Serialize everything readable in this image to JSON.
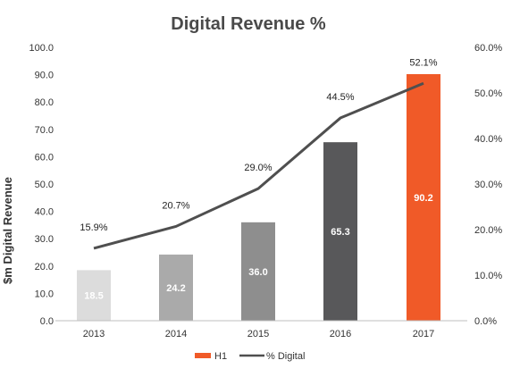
{
  "chart_data": {
    "type": "bar",
    "title": "Digital Revenue %",
    "ylabel": "$m Digital Revenue",
    "categories": [
      "2013",
      "2014",
      "2015",
      "2016",
      "2017"
    ],
    "ylim": [
      0,
      100
    ],
    "y2lim": [
      0,
      60
    ],
    "yticks": [
      "0.0",
      "10.0",
      "20.0",
      "30.0",
      "40.0",
      "50.0",
      "60.0",
      "70.0",
      "80.0",
      "90.0",
      "100.0"
    ],
    "y2ticks": [
      "0.0%",
      "10.0%",
      "20.0%",
      "30.0%",
      "40.0%",
      "50.0%",
      "60.0%"
    ],
    "bar_colors": [
      "#dcdcdc",
      "#aaaaaa",
      "#8e8e8e",
      "#58585a",
      "#f05a28"
    ],
    "line_color": "#4f4f4f",
    "legend_position": "bottom",
    "grid": false,
    "series": [
      {
        "name": "H1",
        "type": "bar",
        "axis": "left",
        "values": [
          18.5,
          24.2,
          36.0,
          65.3,
          90.2
        ],
        "labels": [
          "18.5",
          "24.2",
          "36.0",
          "65.3",
          "90.2"
        ]
      },
      {
        "name": "% Digital",
        "type": "line",
        "axis": "right",
        "values": [
          15.9,
          20.7,
          29.0,
          44.5,
          52.1
        ],
        "labels": [
          "15.9%",
          "20.7%",
          "29.0%",
          "44.5%",
          "52.1%"
        ]
      }
    ]
  }
}
